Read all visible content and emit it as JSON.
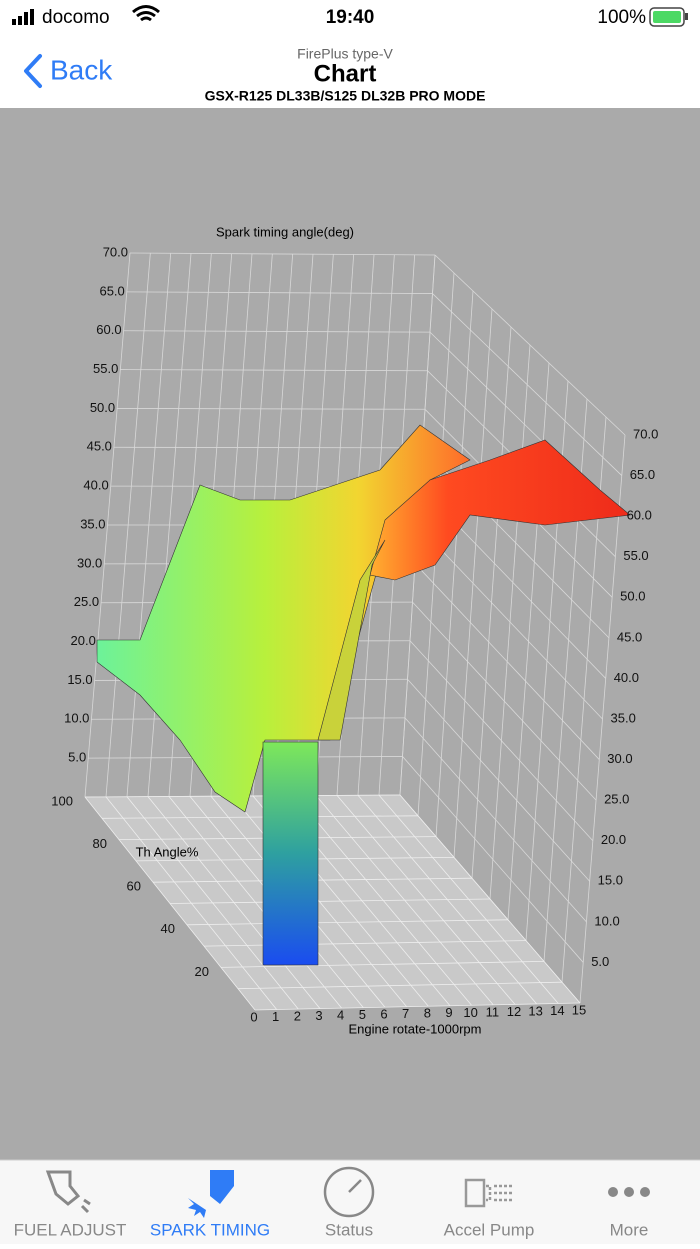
{
  "status_bar": {
    "carrier": "docomo",
    "time": "19:40",
    "battery": "100%"
  },
  "nav": {
    "back": "Back",
    "subtitle": "FirePlus type-V",
    "title": "Chart",
    "mode": "GSX-R125 DL33B/S125 DL32B PRO MODE"
  },
  "chart": {
    "z_label": "Spark timing angle(deg)",
    "z_ticks_left": [
      "70.0",
      "65.0",
      "60.0",
      "55.0",
      "50.0",
      "45.0",
      "40.0",
      "35.0",
      "30.0",
      "25.0",
      "20.0",
      "15.0",
      "10.0",
      "5.0"
    ],
    "z_ticks_right": [
      "70.0",
      "65.0",
      "60.0",
      "55.0",
      "50.0",
      "45.0",
      "40.0",
      "35.0",
      "30.0",
      "25.0",
      "20.0",
      "15.0",
      "10.0",
      "5.0"
    ],
    "th_label": "Th Angle%",
    "th_ticks": [
      "100",
      "80",
      "60",
      "40",
      "20"
    ],
    "rpm_label": "Engine rotate-1000rpm",
    "rpm_ticks": [
      "0",
      "1",
      "2",
      "3",
      "4",
      "5",
      "6",
      "7",
      "8",
      "9",
      "10",
      "11",
      "12",
      "13",
      "14",
      "15"
    ]
  },
  "tabs": [
    {
      "label": "FUEL ADJUST"
    },
    {
      "label": "SPARK TIMING"
    },
    {
      "label": "Status"
    },
    {
      "label": "Accel Pump"
    },
    {
      "label": "More"
    }
  ]
}
